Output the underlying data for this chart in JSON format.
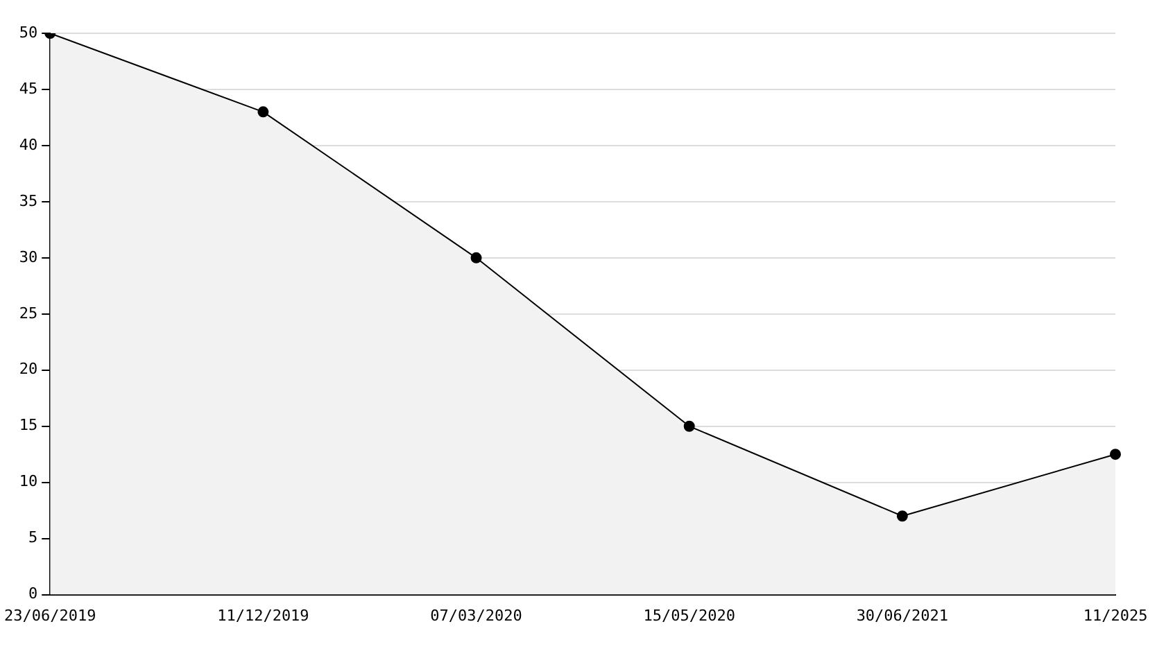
{
  "chart_data": {
    "type": "area",
    "categories": [
      "23/06/2019",
      "11/12/2019",
      "07/03/2020",
      "15/05/2020",
      "30/06/2021",
      "11/2025"
    ],
    "series": [
      {
        "color": "#000000",
        "values": [
          50,
          43,
          30,
          15,
          7,
          12.5
        ]
      }
    ],
    "ylim": [
      0,
      50
    ],
    "yticks": [
      0,
      5,
      10,
      15,
      20,
      25,
      30,
      35,
      40,
      45,
      50
    ],
    "grid": "y",
    "legend": false,
    "marker": "circle",
    "line_style": "solid"
  }
}
